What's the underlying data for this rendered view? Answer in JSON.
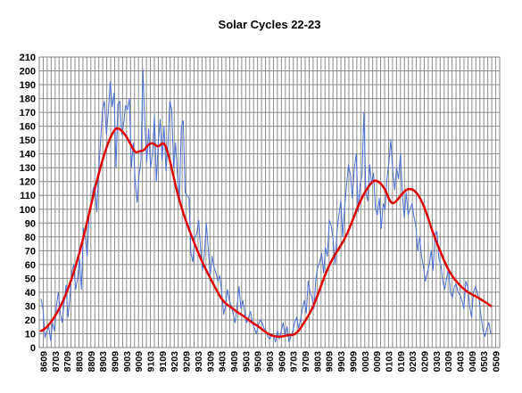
{
  "chart_data": {
    "type": "line",
    "title": "Solar Cycles 22-23",
    "xlabel": "",
    "ylabel": "",
    "ylim": [
      0,
      210
    ],
    "y_ticks": [
      0,
      10,
      20,
      30,
      40,
      50,
      60,
      70,
      80,
      90,
      100,
      110,
      120,
      130,
      140,
      150,
      160,
      170,
      180,
      190,
      200,
      210
    ],
    "x_ticks": [
      "8609",
      "8703",
      "8709",
      "8803",
      "8809",
      "8903",
      "8909",
      "9003",
      "9009",
      "9103",
      "9109",
      "9203",
      "9209",
      "9303",
      "9309",
      "9403",
      "9409",
      "9503",
      "9509",
      "9603",
      "9609",
      "9703",
      "9709",
      "9803",
      "9809",
      "9903",
      "9909",
      "0003",
      "0009",
      "0103",
      "0109",
      "0203",
      "0209",
      "0303",
      "0309",
      "0403",
      "0409",
      "0503",
      "0509"
    ],
    "grid": true,
    "legend": "none",
    "series": [
      {
        "id": "monthly",
        "color": "#4a6fd8",
        "values": [
          35,
          28,
          7,
          12,
          15,
          5,
          18,
          12,
          30,
          40,
          25,
          18,
          32,
          45,
          22,
          36,
          55,
          60,
          42,
          50,
          64,
          42,
          86,
          80,
          66,
          96,
          100,
          114,
          118,
          98,
          128,
          150,
          172,
          178,
          154,
          170,
          192,
          174,
          184,
          130,
          176,
          178,
          154,
          162,
          175,
          172,
          180,
          130,
          148,
          120,
          105,
          125,
          135,
          201,
          162,
          134,
          158,
          130,
          140,
          168,
          120,
          148,
          165,
          135,
          160,
          128,
          146,
          178,
          172,
          130,
          148,
          124,
          108,
          160,
          164,
          112,
          110,
          108,
          68,
          62,
          80,
          82,
          92,
          72,
          56,
          68,
          90,
          72,
          52,
          66,
          58,
          54,
          48,
          52,
          40,
          24,
          30,
          42,
          34,
          30,
          24,
          18,
          30,
          44,
          28,
          34,
          25,
          18,
          22,
          26,
          18,
          14,
          10,
          16,
          20,
          18,
          14,
          12,
          8,
          6,
          10,
          8,
          4,
          12,
          6,
          12,
          18,
          8,
          15,
          4,
          8,
          12,
          18,
          22,
          14,
          20,
          28,
          34,
          25,
          48,
          40,
          36,
          28,
          50,
          58,
          62,
          68,
          54,
          72,
          66,
          92,
          88,
          78,
          60,
          84,
          96,
          106,
          80,
          102,
          118,
          132,
          125,
          108,
          130,
          140,
          98,
          118,
          124,
          170,
          112,
          106,
          132,
          118,
          126,
          100,
          96,
          108,
          86,
          104,
          100,
          122,
          134,
          150,
          128,
          114,
          130,
          122,
          140,
          110,
          94,
          112,
          96,
          100,
          104,
          95,
          88,
          70,
          80,
          66,
          58,
          48,
          54,
          60,
          70,
          56,
          82,
          84,
          64,
          60,
          48,
          42,
          50,
          58,
          40,
          36,
          44,
          46,
          40,
          38,
          34,
          28,
          48,
          44,
          30,
          22,
          40,
          44,
          40,
          34,
          22,
          12,
          8,
          14,
          18,
          10
        ]
      },
      {
        "id": "smoothed",
        "color": "#e00000",
        "values": [
          12,
          12.6,
          13.5,
          14.6,
          15.9,
          17.4,
          19.1,
          20.9,
          22.9,
          25.0,
          27.3,
          29.7,
          32.3,
          35.1,
          38.1,
          41.3,
          44.7,
          48.3,
          52.1,
          56.1,
          60.3,
          64.7,
          69.3,
          74.1,
          79.1,
          84.3,
          89.6,
          95.0,
          100.5,
          106.0,
          111.4,
          116.6,
          121.6,
          126.4,
          131.0,
          135.4,
          139.6,
          143.5,
          147.1,
          150.3,
          153.1,
          155.5,
          157.4,
          158.5,
          158.4,
          157.7,
          156.6,
          155.2,
          153.5,
          151.5,
          149.2,
          146.8,
          144.3,
          142.2,
          141.2,
          141.3,
          141.8,
          142.1,
          142.5,
          143.3,
          145.0,
          146.4,
          147.3,
          147.7,
          147.3,
          146.5,
          145.6,
          145.6,
          146.6,
          147.6,
          147.4,
          145.3,
          141.6,
          136.9,
          131.6,
          126.0,
          120.4,
          115.0,
          110.0,
          105.4,
          101.2,
          97.2,
          93.4,
          89.8,
          86.3,
          82.9,
          79.6,
          76.4,
          73.2,
          70.0,
          67.0,
          64.1,
          61.3,
          58.6,
          56.0,
          53.5,
          51.0,
          48.5,
          46.1,
          43.7,
          41.3,
          39.0,
          36.8,
          34.9,
          33.3,
          32.0,
          31.0,
          30.1,
          29.2,
          28.3,
          27.3,
          26.3,
          25.4,
          24.6,
          23.8,
          23.0,
          22.1,
          21.1,
          20.1,
          19.2,
          18.3,
          17.4,
          16.6,
          15.8,
          14.9,
          14.0,
          13.0,
          12.0,
          11.1,
          10.2,
          9.5,
          8.9,
          8.5,
          8.2,
          8.0,
          7.9,
          7.9,
          8.0,
          8.2,
          8.5,
          8.8,
          9.0,
          9.1,
          9.2,
          9.5,
          10.2,
          11.3,
          12.8,
          14.6,
          16.6,
          18.6,
          20.6,
          22.7,
          25.0,
          27.5,
          30.2,
          33.2,
          36.4,
          39.8,
          43.3,
          46.8,
          50.2,
          53.4,
          56.4,
          59.2,
          61.8,
          64.2,
          66.4,
          68.5,
          70.5,
          72.5,
          74.6,
          76.8,
          79.2,
          81.8,
          84.6,
          87.6,
          90.8,
          94.1,
          97.4,
          100.6,
          103.6,
          106.4,
          109.0,
          111.4,
          113.6,
          115.6,
          117.4,
          119.0,
          120.1,
          120.6,
          120.5,
          119.9,
          118.9,
          117.6,
          115.9,
          113.6,
          110.6,
          107.6,
          105.4,
          104.4,
          104.6,
          105.6,
          107.0,
          108.6,
          110.2,
          111.7,
          113.0,
          113.9,
          114.5,
          114.6,
          114.4,
          113.8,
          112.8,
          111.4,
          109.6,
          107.4,
          104.8,
          101.8,
          98.4,
          94.8,
          91.0,
          87.2,
          83.5,
          80.0,
          76.7,
          73.5,
          70.4,
          67.3,
          64.2,
          61.3,
          58.6,
          56.1,
          53.9,
          51.9,
          50.1,
          48.5,
          47.0,
          45.6,
          44.3,
          43.1,
          42.0,
          41.0,
          40.1,
          39.3,
          38.6,
          37.9,
          37.3,
          36.6,
          35.9,
          35.1,
          34.3,
          33.5,
          32.7,
          31.9,
          31.0,
          30.0
        ]
      }
    ]
  }
}
